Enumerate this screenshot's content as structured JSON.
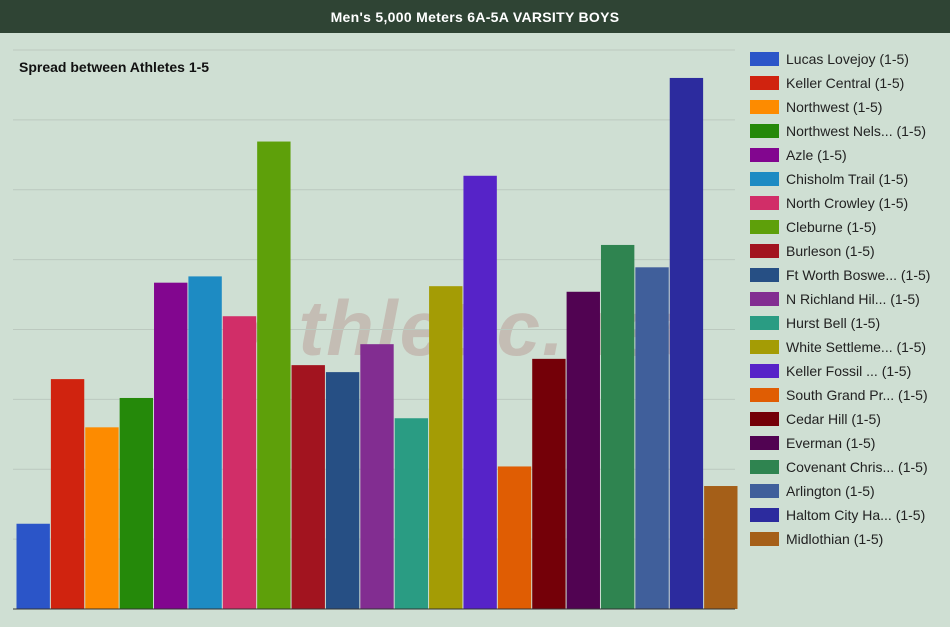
{
  "header": {
    "title": "Men's 5,000 Meters 6A-5A VARSITY BOYS"
  },
  "watermark": "Athletic.net",
  "chart_data": {
    "type": "bar",
    "title": "Spread between Athletes 1-5",
    "xlabel": "",
    "ylabel": "",
    "ylim": [
      0,
      8
    ],
    "grid": true,
    "legend_position": "right",
    "series": [
      {
        "name": "Lucas Lovejoy (1-5)",
        "value": 1.22,
        "color": "#2b55c8"
      },
      {
        "name": "Keller Central (1-5)",
        "value": 3.29,
        "color": "#d0230f"
      },
      {
        "name": "Northwest (1-5)",
        "value": 2.6,
        "color": "#fd8b00"
      },
      {
        "name": "Northwest Nels... (1-5)",
        "value": 3.02,
        "color": "#25890a"
      },
      {
        "name": "Azle (1-5)",
        "value": 4.67,
        "color": "#82068f"
      },
      {
        "name": "Chisholm Trail (1-5)",
        "value": 4.76,
        "color": "#1d8bc3"
      },
      {
        "name": "North Crowley (1-5)",
        "value": 4.19,
        "color": "#d12e68"
      },
      {
        "name": "Cleburne (1-5)",
        "value": 6.69,
        "color": "#5ea00a"
      },
      {
        "name": "Burleson (1-5)",
        "value": 3.49,
        "color": "#a2141f"
      },
      {
        "name": "Ft Worth Boswe... (1-5)",
        "value": 3.39,
        "color": "#264f84"
      },
      {
        "name": "N Richland Hil... (1-5)",
        "value": 3.79,
        "color": "#822d91"
      },
      {
        "name": "Hurst Bell (1-5)",
        "value": 2.73,
        "color": "#2a9c83"
      },
      {
        "name": "White Settleme... (1-5)",
        "value": 4.62,
        "color": "#a49c05"
      },
      {
        "name": "Keller Fossil ... (1-5)",
        "value": 6.2,
        "color": "#5623c8"
      },
      {
        "name": "South Grand Pr... (1-5)",
        "value": 2.04,
        "color": "#e05d03"
      },
      {
        "name": "Cedar Hill (1-5)",
        "value": 3.58,
        "color": "#740008"
      },
      {
        "name": "Everman (1-5)",
        "value": 4.54,
        "color": "#510352"
      },
      {
        "name": "Covenant Chris... (1-5)",
        "value": 5.21,
        "color": "#2f8450"
      },
      {
        "name": "Arlington (1-5)",
        "value": 4.89,
        "color": "#405f9b"
      },
      {
        "name": "Haltom City Ha... (1-5)",
        "value": 7.6,
        "color": "#2c2b9e"
      },
      {
        "name": "Midlothian (1-5)",
        "value": 1.76,
        "color": "#a55f18"
      }
    ]
  }
}
